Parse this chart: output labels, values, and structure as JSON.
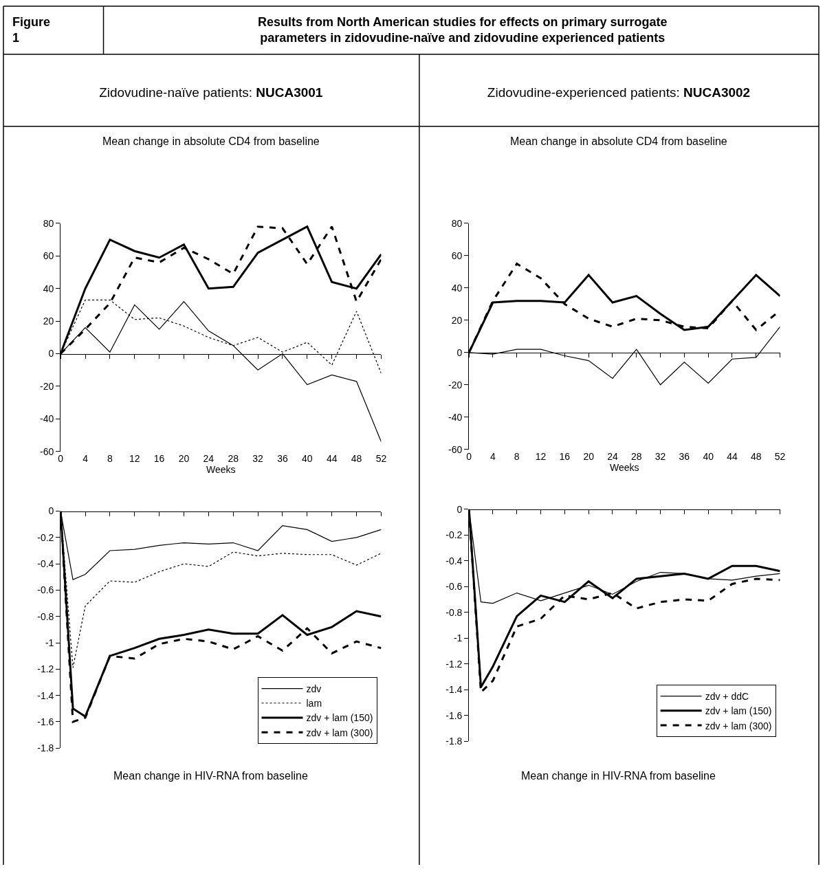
{
  "chart_data": [
    {
      "type": "line",
      "title": "Mean change in absolute CD4 from baseline",
      "subtitle": "Zidovudine-naïve patients: NUCA3001",
      "xlabel": "Weeks",
      "annotations": [
        "Figure 1",
        "Results from North American studies for effects on primary surrogate parameters in zidovudine-naïve and zidovudine experienced patients"
      ],
      "x": [
        0,
        4,
        8,
        12,
        16,
        20,
        24,
        28,
        32,
        36,
        40,
        44,
        48,
        52
      ],
      "series": [
        {
          "color": "#000000",
          "line_style": "solid",
          "values": [
            0,
            16,
            1,
            30,
            15,
            32,
            14,
            5,
            -10,
            0,
            -19,
            -13,
            -17,
            -54
          ]
        },
        {
          "color": "#000000",
          "line_style": "dotted",
          "values": [
            0,
            33,
            33,
            21,
            22,
            17,
            10,
            5,
            10,
            1,
            7,
            -7,
            26,
            -12
          ]
        },
        {
          "color": "#000000",
          "line_style": "solid",
          "values": [
            0,
            40,
            70,
            63,
            59,
            67,
            40,
            41,
            62,
            70,
            78,
            44,
            40,
            61
          ]
        },
        {
          "color": "#000000",
          "line_style": "dashed",
          "values": [
            0,
            15,
            31,
            59,
            56,
            65,
            58,
            49,
            78,
            77,
            55,
            78,
            32,
            58
          ]
        }
      ],
      "xlim": [
        0,
        52
      ],
      "xticks": [
        0,
        4,
        8,
        12,
        16,
        20,
        24,
        28,
        32,
        36,
        40,
        44,
        48,
        52
      ],
      "ylim": [
        -60,
        80
      ],
      "yticks": [
        -60,
        -40,
        -20,
        0,
        20,
        40,
        60,
        80
      ],
      "ref_lines": [
        {
          "axis": "y",
          "value": 0
        }
      ],
      "grid": false,
      "legend": false,
      "marker": "none"
    },
    {
      "type": "line",
      "title": "Mean change in absolute CD4 from baseline",
      "subtitle": "Zidovudine-experienced patients: NUCA3002",
      "xlabel": "Weeks",
      "x": [
        0,
        4,
        8,
        12,
        16,
        20,
        24,
        28,
        32,
        36,
        40,
        44,
        48,
        52
      ],
      "series": [
        {
          "color": "#000000",
          "line_style": "solid",
          "values": [
            0,
            -1,
            2,
            2,
            -2,
            -5,
            -16,
            2,
            -20,
            -6,
            -19,
            -4,
            -3,
            16
          ]
        },
        {
          "color": "#000000",
          "line_style": "solid",
          "values": [
            0,
            31,
            32,
            32,
            31,
            48,
            31,
            35,
            24,
            14,
            16,
            32,
            48,
            35
          ]
        },
        {
          "color": "#000000",
          "line_style": "dashed",
          "values": [
            0,
            32,
            55,
            46,
            30,
            21,
            16,
            21,
            20,
            16,
            15,
            32,
            14,
            26
          ]
        }
      ],
      "xlim": [
        0,
        52
      ],
      "xticks": [
        0,
        4,
        8,
        12,
        16,
        20,
        24,
        28,
        32,
        36,
        40,
        44,
        48,
        52
      ],
      "ylim": [
        -60,
        80
      ],
      "yticks": [
        -60,
        -40,
        -20,
        0,
        20,
        40,
        60,
        80
      ],
      "ref_lines": [
        {
          "axis": "y",
          "value": 0
        }
      ],
      "grid": false,
      "legend": false,
      "marker": "none"
    },
    {
      "type": "line",
      "annotations": [
        "Mean change in HIV-RNA from baseline"
      ],
      "x": [
        0,
        2,
        4,
        8,
        12,
        16,
        20,
        24,
        28,
        32,
        36,
        40,
        44,
        48,
        52
      ],
      "series": [
        {
          "name": "zdv",
          "color": "#000000",
          "line_style": "solid",
          "values": [
            0,
            -0.52,
            -0.48,
            -0.3,
            -0.29,
            -0.26,
            -0.24,
            -0.25,
            -0.24,
            -0.3,
            -0.11,
            -0.14,
            -0.23,
            -0.2,
            -0.14
          ]
        },
        {
          "name": "lam",
          "color": "#000000",
          "line_style": "dotted",
          "values": [
            0,
            -1.19,
            -0.72,
            -0.53,
            -0.54,
            -0.46,
            -0.4,
            -0.42,
            -0.31,
            -0.34,
            -0.32,
            -0.33,
            -0.33,
            -0.41,
            -0.32
          ]
        },
        {
          "name": "zdv + lam (150)",
          "color": "#000000",
          "line_style": "solid",
          "values": [
            0,
            -1.5,
            -1.56,
            -1.1,
            -1.04,
            -0.97,
            -0.94,
            -0.9,
            -0.93,
            -0.93,
            -0.79,
            -0.94,
            -0.88,
            -0.76,
            -0.8
          ]
        },
        {
          "name": "zdv + lam (300)",
          "color": "#000000",
          "line_style": "dashed",
          "values": [
            0,
            -1.6,
            -1.57,
            -1.1,
            -1.12,
            -1.01,
            -0.97,
            -0.99,
            -1.05,
            -0.95,
            -1.06,
            -0.89,
            -1.08,
            -0.99,
            -1.04
          ]
        }
      ],
      "xlim": [
        0,
        52
      ],
      "xticks": [
        {
          "value": 0,
          "label": null
        },
        {
          "value": 4,
          "label": null
        },
        {
          "value": 8,
          "label": null
        },
        {
          "value": 12,
          "label": null
        },
        {
          "value": 16,
          "label": null
        },
        {
          "value": 20,
          "label": null
        },
        {
          "value": 24,
          "label": null
        },
        {
          "value": 28,
          "label": null
        },
        {
          "value": 32,
          "label": null
        },
        {
          "value": 36,
          "label": null
        },
        {
          "value": 40,
          "label": null
        },
        {
          "value": 44,
          "label": null
        },
        {
          "value": 48,
          "label": null
        },
        {
          "value": 52,
          "label": null
        }
      ],
      "ylim": [
        -1.8,
        0
      ],
      "yticks": [
        -1.8,
        -1.6,
        -1.4,
        -1.2,
        -1,
        -0.8,
        -0.6,
        -0.4,
        -0.2,
        0
      ],
      "tick_labels": "y",
      "grid": false,
      "legend": "bottom right",
      "marker": "none"
    },
    {
      "type": "line",
      "annotations": [
        "Mean change in HIV-RNA from baseline"
      ],
      "x": [
        0,
        2,
        4,
        8,
        12,
        16,
        20,
        24,
        28,
        32,
        36,
        40,
        44,
        48,
        52
      ],
      "series": [
        {
          "name": "zdv + ddC",
          "color": "#000000",
          "line_style": "solid",
          "values": [
            0,
            -0.72,
            -0.73,
            -0.65,
            -0.71,
            -0.65,
            -0.59,
            -0.66,
            -0.56,
            -0.49,
            -0.5,
            -0.54,
            -0.55,
            -0.52,
            -0.5
          ]
        },
        {
          "name": "zdv + lam (150)",
          "color": "#000000",
          "line_style": "solid",
          "values": [
            0,
            -1.38,
            -1.22,
            -0.83,
            -0.67,
            -0.72,
            -0.56,
            -0.69,
            -0.54,
            -0.52,
            -0.5,
            -0.54,
            -0.44,
            -0.44,
            -0.48
          ]
        },
        {
          "name": "zdv + lam (300)",
          "color": "#000000",
          "line_style": "dashed",
          "values": [
            0,
            -1.42,
            -1.33,
            -0.91,
            -0.85,
            -0.67,
            -0.7,
            -0.65,
            -0.77,
            -0.72,
            -0.7,
            -0.71,
            -0.58,
            -0.54,
            -0.55
          ]
        }
      ],
      "xlim": [
        0,
        52
      ],
      "xticks": [
        {
          "value": 0,
          "label": null
        },
        {
          "value": 4,
          "label": null
        },
        {
          "value": 8,
          "label": null
        },
        {
          "value": 12,
          "label": null
        },
        {
          "value": 16,
          "label": null
        },
        {
          "value": 20,
          "label": null
        },
        {
          "value": 24,
          "label": null
        },
        {
          "value": 28,
          "label": null
        },
        {
          "value": 32,
          "label": null
        },
        {
          "value": 36,
          "label": null
        },
        {
          "value": 40,
          "label": null
        },
        {
          "value": 44,
          "label": null
        },
        {
          "value": 48,
          "label": null
        },
        {
          "value": 52,
          "label": null
        }
      ],
      "ylim": [
        -1.8,
        0
      ],
      "yticks": [
        -1.8,
        -1.6,
        -1.4,
        -1.2,
        -1,
        -0.8,
        -0.6,
        -0.4,
        -0.2,
        0
      ],
      "tick_labels": "y",
      "grid": false,
      "legend": "bottom right",
      "marker": "none"
    }
  ]
}
